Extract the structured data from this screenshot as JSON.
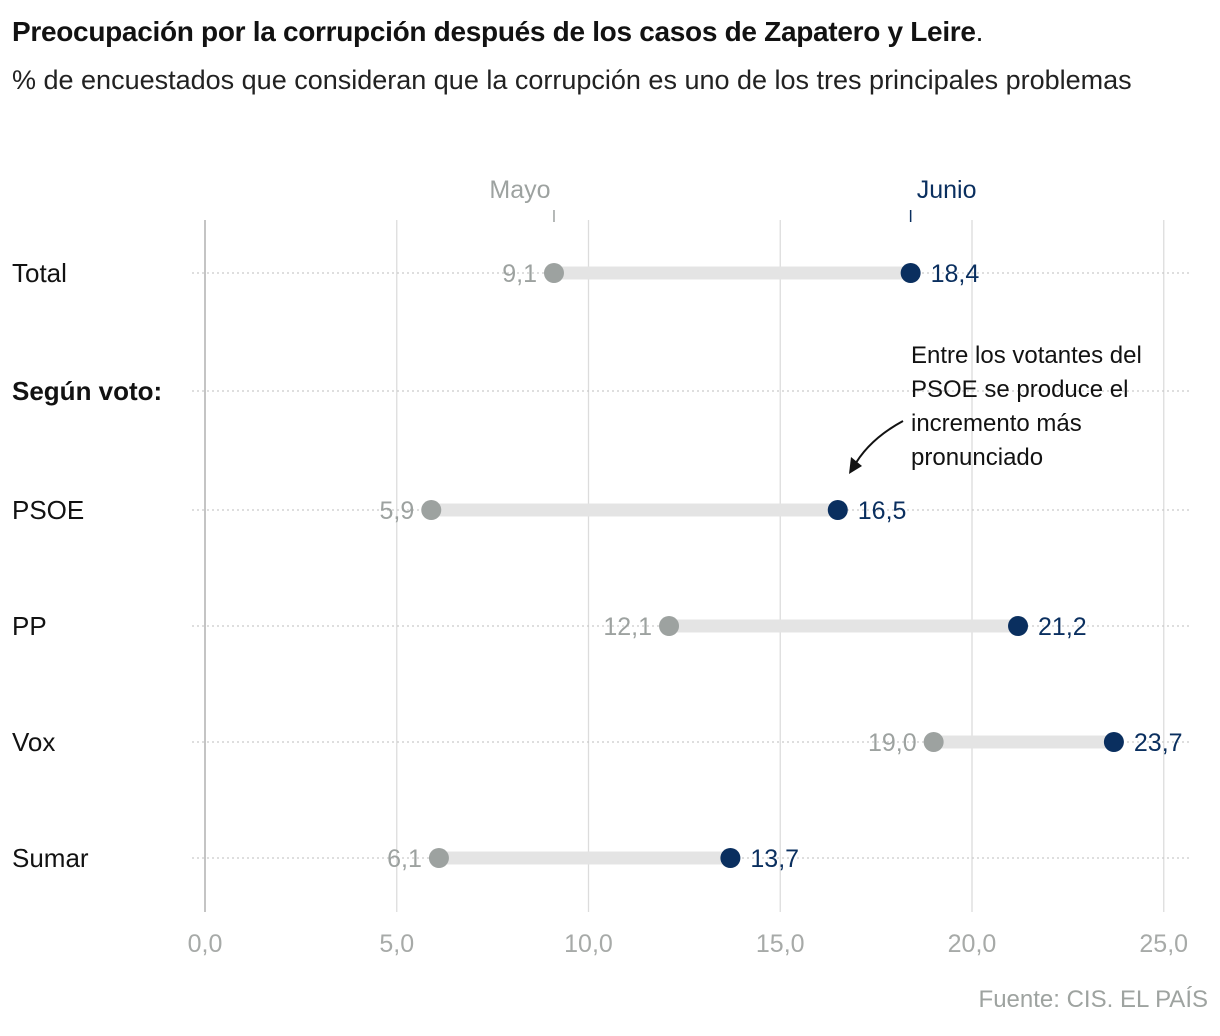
{
  "title": "Preocupación por la corrupción después de los casos de Zapatero y Leire",
  "title_end": ".",
  "subtitle": "% de encuestados que consideran que la corrupción es uno de los tres principales problemas",
  "note": "Entre los votantes del PSOE se produce el incremento más pronunciado",
  "source": "Fuente: CIS. EL PAÍS",
  "colors": {
    "may": "#9da2a0",
    "june": "#0a2f5f",
    "bar": "#e4e4e4",
    "grid": "#dcdcdc"
  },
  "chart_data": {
    "type": "dumbbell",
    "title": "Preocupación por la corrupción después de los casos de Zapatero y Leire",
    "subtitle": "% de encuestados que consideran que la corrupción es uno de los tres principales problemas",
    "xlim": [
      0,
      25
    ],
    "xticks": [
      "0,0",
      "5,0",
      "10,0",
      "15,0",
      "20,0",
      "25,0"
    ],
    "xtick_values": [
      0,
      5,
      10,
      15,
      20,
      25
    ],
    "grid": true,
    "legend": {
      "start": "Mayo",
      "end": "Junio",
      "placement": "top"
    },
    "series_names": [
      "Mayo",
      "Junio"
    ],
    "rows": [
      {
        "label": "Total",
        "may": 9.1,
        "june": 18.4,
        "may_label": "9,1",
        "june_label": "18,4"
      },
      {
        "label": "Según voto:",
        "header": true
      },
      {
        "label": "PSOE",
        "may": 5.9,
        "june": 16.5,
        "may_label": "5,9",
        "june_label": "16,5"
      },
      {
        "label": "PP",
        "may": 12.1,
        "june": 21.2,
        "may_label": "12,1",
        "june_label": "21,2"
      },
      {
        "label": "Vox",
        "may": 19.0,
        "june": 23.7,
        "may_label": "19,0",
        "june_label": "23,7"
      },
      {
        "label": "Sumar",
        "may": 6.1,
        "june": 13.7,
        "may_label": "6,1",
        "june_label": "13,7"
      }
    ]
  }
}
